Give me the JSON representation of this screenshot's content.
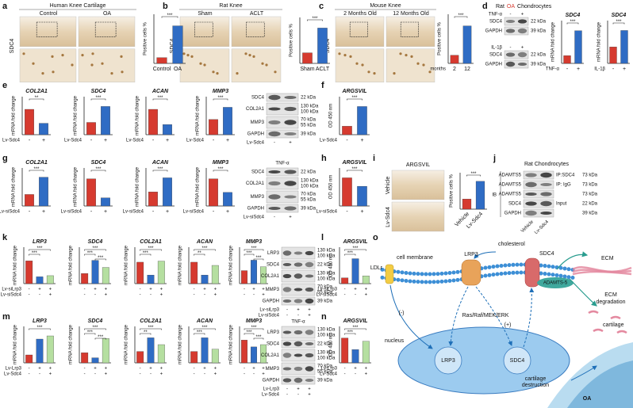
{
  "panel_labels": [
    "a",
    "b",
    "c",
    "d",
    "e",
    "f",
    "g",
    "h",
    "i",
    "j",
    "k",
    "l",
    "m",
    "n",
    "o"
  ],
  "colors": [
    "#d63a2f",
    "#2f6cc4",
    "#b5dfa0"
  ],
  "d_title": [
    "Rat",
    "OA",
    "Chondrocytes"
  ],
  "images": [
    {
      "title": "Human Knee Cartilage",
      "labels": [
        "Control",
        "OA"
      ],
      "row_label": "SDC4"
    },
    {
      "title": "Rat Knee",
      "labels": [
        "Sham",
        "ACLT"
      ],
      "row_label": "SDC4"
    },
    {
      "title": "Mouse Knee",
      "labels": [
        "2 Months Old",
        "12 Months Old"
      ],
      "row_label": "SDC4"
    },
    {
      "title": "ARGSVIL",
      "labels": [
        "Vehicle",
        "Lv-Sdc4"
      ]
    }
  ],
  "chart_data": [
    {
      "type": "bar",
      "ylabel": "Positive cells %",
      "categories": [
        "Control",
        "OA"
      ],
      "values": [
        10,
        65
      ],
      "ylim": [
        0,
        85
      ],
      "sig": [
        "***"
      ]
    },
    {
      "type": "bar",
      "ylabel": "Positive cells %",
      "categories": [
        "Sham",
        "ACLT"
      ],
      "values": [
        15,
        50
      ],
      "ylim": [
        0,
        65
      ],
      "sig": [
        "***"
      ]
    },
    {
      "type": "bar",
      "ylabel": "Positive cells %",
      "categories": [
        "2",
        "12"
      ],
      "xlabel": "months",
      "values": [
        12,
        55
      ],
      "ylim": [
        0,
        72
      ],
      "sig": [
        "***"
      ]
    },
    {
      "type": "bar",
      "title": "SDC4",
      "ylabel": "mRNA fold change",
      "categories": [
        "-",
        "+"
      ],
      "xlabel": "TNF-α",
      "values": [
        1,
        4.2
      ],
      "ylim": [
        0,
        5.5
      ],
      "sig": [
        "***"
      ]
    },
    {
      "type": "bar",
      "title": "SDC4",
      "ylabel": "mRNA fold change",
      "categories": [
        "-",
        "+"
      ],
      "xlabel": "IL-1β",
      "values": [
        1,
        2
      ],
      "ylim": [
        0,
        2.6
      ],
      "sig": [
        "***"
      ]
    },
    {
      "type": "bar",
      "title": "COL2A1",
      "ylabel": "mRNA fold change",
      "categories": [
        "-",
        "+"
      ],
      "xlabel": "Lv-Sdc4",
      "values": [
        1,
        0.45
      ],
      "ylim": [
        0,
        1.5
      ],
      "sig": [
        "**"
      ]
    },
    {
      "type": "bar",
      "title": "SDC4",
      "ylabel": "mRNA fold change",
      "categories": [
        "-",
        "+"
      ],
      "xlabel": "Lv-Sdc4",
      "values": [
        1,
        2.3
      ],
      "ylim": [
        0,
        3.1
      ],
      "sig": [
        "***"
      ]
    },
    {
      "type": "bar",
      "title": "ACAN",
      "ylabel": "mRNA fold change",
      "categories": [
        "-",
        "+"
      ],
      "xlabel": "Lv-Sdc4",
      "values": [
        1,
        0.4
      ],
      "ylim": [
        0,
        1.5
      ],
      "sig": [
        "***"
      ]
    },
    {
      "type": "bar",
      "title": "MMP3",
      "ylabel": "mRNA fold change",
      "categories": [
        "-",
        "+"
      ],
      "xlabel": "Lv-Sdc4",
      "values": [
        1,
        1.8
      ],
      "ylim": [
        0,
        2.5
      ],
      "sig": [
        "***"
      ]
    },
    {
      "type": "bar",
      "title": "ARGSVIL",
      "ylabel": "OD 450 nm",
      "categories": [
        "-",
        "+"
      ],
      "xlabel": "Lv-Sdc4",
      "values": [
        0.3,
        1.0
      ],
      "ylim": [
        0,
        1.35
      ],
      "sig": [
        "***"
      ]
    },
    {
      "type": "bar",
      "title": "COL2A1",
      "ylabel": "mRNA fold change",
      "categories": [
        "-",
        "+"
      ],
      "xlabel": "Lv-siSdc4",
      "values": [
        1,
        2.5
      ],
      "ylim": [
        0,
        3.3
      ],
      "sig": [
        "***"
      ]
    },
    {
      "type": "bar",
      "title": "SDC4",
      "ylabel": "mRNA fold change",
      "categories": [
        "-",
        "+"
      ],
      "xlabel": "Lv-siSdc4",
      "values": [
        1,
        0.3
      ],
      "ylim": [
        0,
        1.4
      ],
      "sig": [
        "***"
      ]
    },
    {
      "type": "bar",
      "title": "ACAN",
      "ylabel": "mRNA fold change",
      "categories": [
        "-",
        "+"
      ],
      "xlabel": "Lv-siSdc4",
      "values": [
        1,
        2
      ],
      "ylim": [
        0,
        2.7
      ],
      "sig": [
        "***"
      ]
    },
    {
      "type": "bar",
      "title": "MMP3",
      "ylabel": "mRNA fold change",
      "categories": [
        "-",
        "+"
      ],
      "xlabel": "Lv-siSdc4",
      "values": [
        1,
        0.5
      ],
      "ylim": [
        0,
        1.4
      ],
      "sig": [
        "***"
      ]
    },
    {
      "type": "bar",
      "title": "ARGSVIL",
      "ylabel": "OD 450 nm",
      "categories": [
        "-",
        "+"
      ],
      "xlabel": "Lv-siSdc4",
      "values": [
        1.0,
        0.7
      ],
      "ylim": [
        0,
        1.35
      ],
      "sig": [
        "***"
      ]
    },
    {
      "type": "bar",
      "ylabel": "Positive cells %",
      "categories": [
        "Vehicle",
        "Lv-Sdc4"
      ],
      "values": [
        20,
        55
      ],
      "ylim": [
        0,
        72
      ],
      "sig": [
        "***"
      ]
    },
    {
      "type": "bar",
      "title": "LRP3",
      "ylabel": "mRNA fold change",
      "signs": [
        [
          "-",
          "+",
          "+"
        ],
        [
          "-",
          "-",
          "+"
        ]
      ],
      "condition_names": [
        "Lv-siLrp3",
        "Lv-siSdc4"
      ],
      "values": [
        1,
        0.3,
        0.35
      ],
      "ylim": [
        0,
        1.6
      ],
      "sig": [
        "***",
        "***"
      ]
    },
    {
      "type": "bar",
      "title": "SDC4",
      "ylabel": "mRNA fold change",
      "signs": [
        [
          "-",
          "+",
          "+"
        ],
        [
          "-",
          "-",
          "+"
        ]
      ],
      "values": [
        1,
        2.3,
        1.6
      ],
      "ylim": [
        0,
        3.6
      ],
      "sig": [
        "***",
        "***",
        "***"
      ]
    },
    {
      "type": "bar",
      "title": "COL2A1",
      "ylabel": "mRNA fold change",
      "signs": [
        [
          "-",
          "+",
          "+"
        ],
        [
          "-",
          "-",
          "+"
        ]
      ],
      "values": [
        1,
        0.4,
        1.05
      ],
      "ylim": [
        0,
        1.7
      ],
      "sig": [
        "***",
        "***"
      ]
    },
    {
      "type": "bar",
      "title": "ACAN",
      "ylabel": "mRNA fold change",
      "signs": [
        [
          "-",
          "+",
          "+"
        ],
        [
          "-",
          "-",
          "+"
        ]
      ],
      "values": [
        1,
        0.4,
        0.85
      ],
      "ylim": [
        0,
        1.7
      ],
      "sig": [
        "***",
        "**"
      ]
    },
    {
      "type": "bar",
      "title": "MMP3",
      "ylabel": "mRNA fold change",
      "signs": [
        [
          "-",
          "+",
          "+"
        ],
        [
          "-",
          "-",
          "+"
        ]
      ],
      "values": [
        1,
        1.8,
        1.3
      ],
      "ylim": [
        0,
        2.8
      ],
      "sig": [
        "***",
        "***",
        "***"
      ]
    },
    {
      "type": "bar",
      "title": "ARGSVIL",
      "ylabel": "OD 450 nm",
      "signs": [
        [
          "-",
          "+",
          "+"
        ],
        [
          "-",
          "-",
          "+"
        ]
      ],
      "condition_names": [
        "Lv-siLrp3",
        "Lv-siSdc4"
      ],
      "values": [
        0.3,
        1.3,
        0.4
      ],
      "ylim": [
        0,
        1.9
      ],
      "sig": [
        "***",
        "***"
      ]
    },
    {
      "type": "bar",
      "title": "LRP3",
      "ylabel": "mRNA fold change",
      "signs": [
        [
          "-",
          "+",
          "+"
        ],
        [
          "-",
          "-",
          "+"
        ]
      ],
      "condition_names": [
        "Lv-Lrp3",
        "Lv-Sdc4"
      ],
      "values": [
        1,
        3,
        3.4
      ],
      "ylim": [
        0,
        4.6
      ],
      "sig": [
        "***"
      ]
    },
    {
      "type": "bar",
      "title": "SDC4",
      "ylabel": "mRNA fold change",
      "signs": [
        [
          "-",
          "+",
          "+"
        ],
        [
          "-",
          "-",
          "+"
        ]
      ],
      "values": [
        1,
        0.5,
        2.4
      ],
      "ylim": [
        0,
        3.6
      ],
      "sig": [
        "***",
        "***",
        "***"
      ]
    },
    {
      "type": "bar",
      "title": "COL2A1",
      "ylabel": "mRNA fold change",
      "signs": [
        [
          "-",
          "+",
          "+"
        ],
        [
          "-",
          "-",
          "+"
        ]
      ],
      "values": [
        1,
        2.2,
        1.6
      ],
      "ylim": [
        0,
        3.2
      ],
      "sig": [
        "***",
        "**"
      ]
    },
    {
      "type": "bar",
      "title": "ACAN",
      "ylabel": "mRNA fold change",
      "signs": [
        [
          "-",
          "+",
          "+"
        ],
        [
          "-",
          "-",
          "+"
        ]
      ],
      "values": [
        1,
        2.2,
        1.2
      ],
      "ylim": [
        0,
        3.2
      ],
      "sig": [
        "***",
        "***"
      ]
    },
    {
      "type": "bar",
      "title": "MMP3",
      "ylabel": "mRNA fold change",
      "signs": [
        [
          "-",
          "+",
          "+"
        ],
        [
          "-",
          "-",
          "+"
        ]
      ],
      "values": [
        1,
        0.7,
        0.8
      ],
      "ylim": [
        0,
        1.6
      ],
      "sig": [
        "***",
        "***",
        "***"
      ]
    },
    {
      "type": "bar",
      "title": "ARGSVIL",
      "ylabel": "OD 450 nm",
      "signs": [
        [
          "-",
          "+",
          "+"
        ],
        [
          "-",
          "-",
          "+"
        ]
      ],
      "condition_names": [
        "Lv-Lrp3",
        "Lv-Sdc4"
      ],
      "values": [
        1.5,
        0.8,
        1.3
      ],
      "ylim": [
        0,
        2.2
      ],
      "sig": [
        "***",
        "***"
      ]
    }
  ],
  "blots": [
    {
      "treatment": "TNF-α",
      "top_lanes": [
        "-",
        "+"
      ],
      "bands": [
        {
          "name": "SDC4",
          "kda": [
            "22 kDa"
          ]
        },
        {
          "name": "GAPDH",
          "kda": [
            "39 kDa"
          ]
        }
      ]
    },
    {
      "treatment": "IL-1β",
      "top_lanes": [
        "-",
        "+"
      ],
      "bands": [
        {
          "name": "SDC4",
          "kda": [
            "22 kDa"
          ]
        },
        {
          "name": "GAPDH",
          "kda": [
            "39 kDa"
          ]
        }
      ]
    },
    {
      "bands": [
        {
          "name": "SDC4",
          "kda": [
            "22 kDa"
          ]
        },
        {
          "name": "COL2A1",
          "kda": [
            "130 kDa",
            "100 kDa"
          ]
        },
        {
          "name": "MMP3",
          "kda": [
            "70 kDa",
            "55 kDa"
          ]
        },
        {
          "name": "GAPDH",
          "kda": [
            "39 kDa"
          ]
        }
      ],
      "lane_rows": [
        {
          "name": "Lv-Sdc4",
          "signs": [
            "-",
            "+"
          ]
        }
      ]
    },
    {
      "treatment": "TNF-α",
      "bands": [
        {
          "name": "SDC4",
          "kda": [
            "22 kDa"
          ]
        },
        {
          "name": "COL2A1",
          "kda": [
            "130 kDa",
            "100 kDa"
          ]
        },
        {
          "name": "MMP3",
          "kda": [
            "70 kDa",
            "55 kDa"
          ]
        },
        {
          "name": "GAPDH",
          "kda": [
            "39 kDa"
          ]
        }
      ],
      "lane_rows": [
        {
          "name": "Lv-siSdc4",
          "signs": [
            "-",
            "+"
          ]
        }
      ]
    },
    {
      "title": "Rat Chondrocytes",
      "group": "IB",
      "bands": [
        {
          "name": "ADAMTS5",
          "kda": [
            "73 kDa"
          ],
          "side": "IP:SDC4"
        },
        {
          "name": "ADAMTS5",
          "kda": [
            "73 kDa"
          ],
          "side": "IP: IgG"
        },
        {
          "name": "ADAMTS5",
          "kda": [
            "73 kDa"
          ]
        },
        {
          "name": "SDC4",
          "kda": [
            "22 kDa"
          ],
          "side": "Input"
        },
        {
          "name": "GAPDH",
          "kda": [
            "39 kDa"
          ]
        }
      ],
      "lane_names": [
        "Vehicle",
        "Lv-Sdc4"
      ]
    },
    {
      "bands": [
        {
          "name": "LRP3",
          "kda": [
            "130 kDa",
            "100 kDa"
          ]
        },
        {
          "name": "SDC4",
          "kda": [
            "22 kDa"
          ]
        },
        {
          "name": "COL2A1",
          "kda": [
            "130 kDa",
            "100 kDa"
          ]
        },
        {
          "name": "MMP3",
          "kda": [
            "70 kDa",
            "55 kDa"
          ]
        },
        {
          "name": "GAPDH",
          "kda": [
            "39 kDa"
          ]
        }
      ],
      "lane_rows": [
        {
          "name": "Lv-siLrp3",
          "signs": [
            "-",
            "+",
            "+"
          ]
        },
        {
          "name": "Lv-siSdc4",
          "signs": [
            "-",
            "-",
            "+"
          ]
        }
      ]
    },
    {
      "treatment": "TNF-α",
      "bands": [
        {
          "name": "LRP3",
          "kda": [
            "130 kDa",
            "100 kDa"
          ]
        },
        {
          "name": "SDC4",
          "kda": [
            "22 kDa"
          ]
        },
        {
          "name": "COL2A1",
          "kda": [
            "130 kDa",
            "100 kDa"
          ]
        },
        {
          "name": "MMP3",
          "kda": [
            "70 kDa",
            "55 kDa"
          ]
        },
        {
          "name": "GAPDH",
          "kda": [
            "39 kDa"
          ]
        }
      ],
      "lane_rows": [
        {
          "name": "Lv-Lrp3",
          "signs": [
            "-",
            "+",
            "+"
          ]
        },
        {
          "name": "Lv-Sdc4",
          "signs": [
            "-",
            "-",
            "+"
          ]
        }
      ]
    }
  ],
  "diagram": {
    "cell_membrane": "cell membrane",
    "cholesterol": "cholesterol",
    "ldlr": "LDLr",
    "lrp3": "LRP3",
    "sdc4": "SDC4",
    "adamts5": "ADAMTS-5",
    "ecm": "ECM",
    "ecm_degradation": [
      "ECM",
      "degradation"
    ],
    "pathway": "Ras/Raf/MEK/ERK",
    "plus": "(+)",
    "minus": "(-)",
    "nucleus": "nucleus",
    "nuc_lrp3": "LRP3",
    "nuc_sdc4": "SDC4",
    "cartilage": "cartilage",
    "cartilage_destruction": [
      "cartilage",
      "destruction"
    ],
    "oa": "OA"
  }
}
